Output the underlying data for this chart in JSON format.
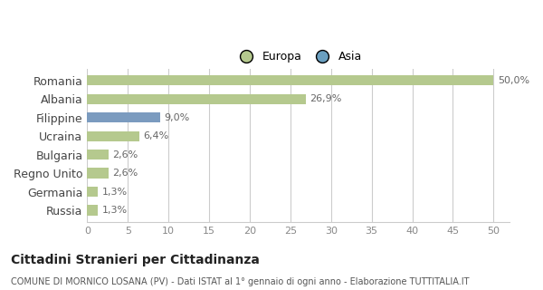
{
  "categories": [
    "Romania",
    "Albania",
    "Filippine",
    "Ucraina",
    "Bulgaria",
    "Regno Unito",
    "Germania",
    "Russia"
  ],
  "values": [
    50.0,
    26.9,
    9.0,
    6.4,
    2.6,
    2.6,
    1.3,
    1.3
  ],
  "labels": [
    "50,0%",
    "26,9%",
    "9,0%",
    "6,4%",
    "2,6%",
    "2,6%",
    "1,3%",
    "1,3%"
  ],
  "colors": [
    "#b5c98e",
    "#b5c98e",
    "#7b9bbf",
    "#b5c98e",
    "#b5c98e",
    "#b5c98e",
    "#b5c98e",
    "#b5c98e"
  ],
  "legend_items": [
    {
      "label": "Europa",
      "color": "#b5c98e"
    },
    {
      "label": "Asia",
      "color": "#6a9fc0"
    }
  ],
  "xlim": [
    0,
    52
  ],
  "xticks": [
    0,
    5,
    10,
    15,
    20,
    25,
    30,
    35,
    40,
    45,
    50
  ],
  "title_bold": "Cittadini Stranieri per Cittadinanza",
  "subtitle": "COMUNE DI MORNICO LOSANA (PV) - Dati ISTAT al 1° gennaio di ogni anno - Elaborazione TUTTITALIA.IT",
  "background_color": "#ffffff",
  "grid_color": "#cccccc",
  "bar_height": 0.55
}
